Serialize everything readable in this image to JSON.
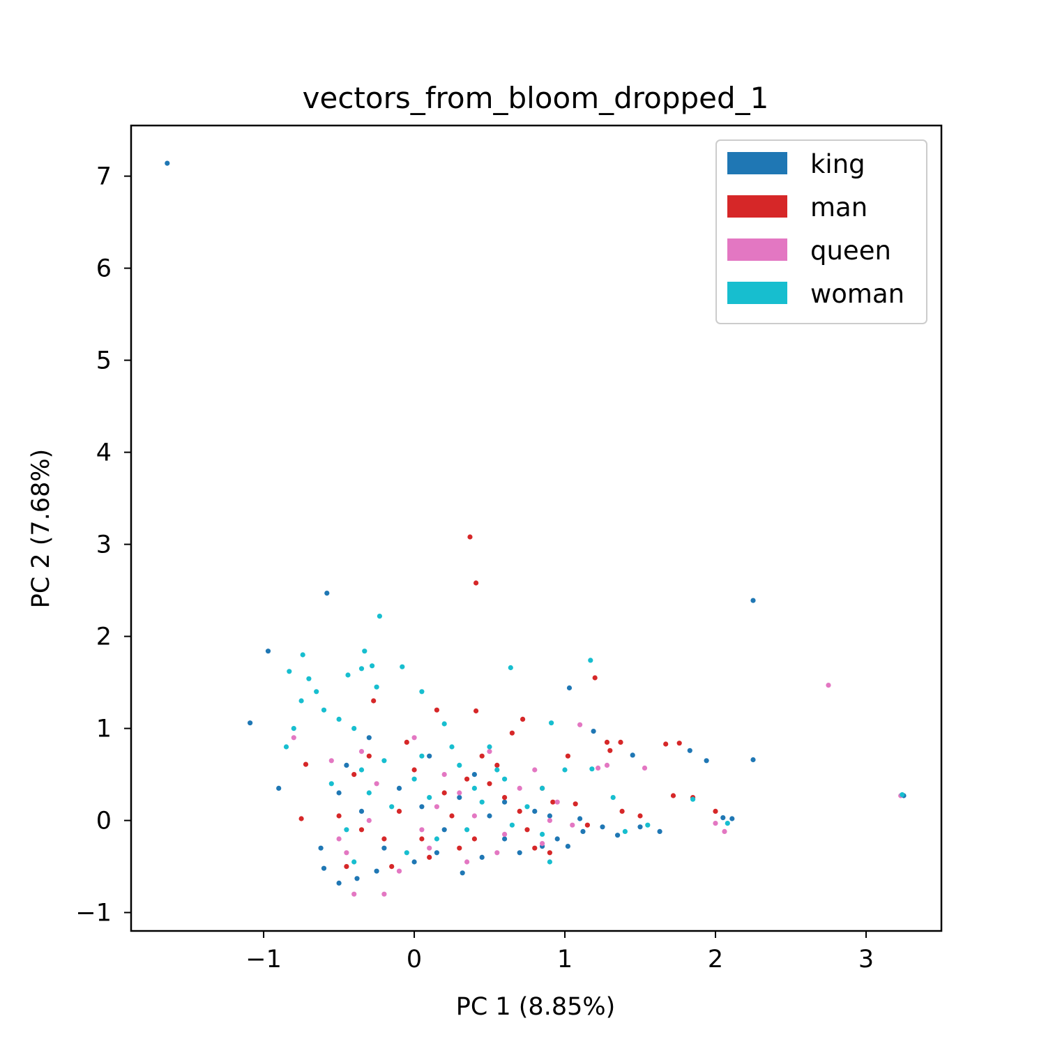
{
  "chart_data": {
    "type": "scatter",
    "title": "vectors_from_bloom_dropped_1",
    "xlabel": "PC 1 (8.85%)",
    "ylabel": "PC 2 (7.68%)",
    "xlim": [
      -1.88,
      3.5
    ],
    "ylim": [
      -1.2,
      7.55
    ],
    "xticks": [
      -1,
      0,
      1,
      2,
      3
    ],
    "xtick_labels": [
      "−1",
      "0",
      "1",
      "2",
      "3"
    ],
    "yticks": [
      -1,
      0,
      1,
      2,
      3,
      4,
      5,
      6,
      7
    ],
    "ytick_labels": [
      "−1",
      "0",
      "1",
      "2",
      "3",
      "4",
      "5",
      "6",
      "7"
    ],
    "grid": false,
    "legend_position": "top-right",
    "series": [
      {
        "name": "king",
        "color": "#1f77b4",
        "points": [
          [
            -1.64,
            7.14
          ],
          [
            -0.58,
            2.47
          ],
          [
            2.25,
            2.39
          ],
          [
            -0.97,
            1.84
          ],
          [
            -1.09,
            1.06
          ],
          [
            -0.9,
            0.35
          ],
          [
            1.03,
            1.44
          ],
          [
            1.19,
            0.97
          ],
          [
            1.45,
            0.71
          ],
          [
            1.83,
            0.76
          ],
          [
            1.94,
            0.65
          ],
          [
            2.25,
            0.66
          ],
          [
            1.5,
            -0.07
          ],
          [
            1.63,
            -0.12
          ],
          [
            2.05,
            0.03
          ],
          [
            2.11,
            0.02
          ],
          [
            3.25,
            0.27
          ],
          [
            -0.62,
            -0.3
          ],
          [
            -0.6,
            -0.52
          ],
          [
            -0.5,
            -0.68
          ],
          [
            -0.38,
            -0.63
          ],
          [
            0.32,
            -0.57
          ],
          [
            0.7,
            -0.35
          ],
          [
            0.85,
            -0.28
          ],
          [
            0.95,
            -0.2
          ],
          [
            1.02,
            -0.28
          ],
          [
            1.12,
            -0.12
          ],
          [
            1.25,
            -0.07
          ],
          [
            1.35,
            -0.16
          ],
          [
            0.6,
            0.2
          ],
          [
            0.4,
            0.5
          ],
          [
            -0.45,
            0.6
          ],
          [
            -0.3,
            0.9
          ],
          [
            0.1,
            0.7
          ],
          [
            0.5,
            0.05
          ],
          [
            -0.2,
            -0.3
          ],
          [
            0.0,
            -0.45
          ],
          [
            0.2,
            -0.1
          ],
          [
            -0.35,
            0.1
          ],
          [
            0.8,
            0.1
          ],
          [
            0.6,
            -0.2
          ],
          [
            -0.5,
            0.3
          ],
          [
            0.3,
            0.25
          ],
          [
            0.15,
            -0.35
          ],
          [
            -0.1,
            0.35
          ],
          [
            0.9,
            0.05
          ],
          [
            1.1,
            0.02
          ],
          [
            0.45,
            -0.4
          ],
          [
            -0.25,
            -0.55
          ],
          [
            0.05,
            0.15
          ]
        ]
      },
      {
        "name": "man",
        "color": "#d62728",
        "points": [
          [
            0.37,
            3.08
          ],
          [
            0.41,
            2.58
          ],
          [
            1.2,
            1.55
          ],
          [
            -0.27,
            1.3
          ],
          [
            0.41,
            1.19
          ],
          [
            -0.75,
            0.02
          ],
          [
            -0.72,
            0.61
          ],
          [
            0.72,
            1.1
          ],
          [
            0.65,
            0.95
          ],
          [
            1.28,
            0.85
          ],
          [
            1.37,
            0.85
          ],
          [
            1.67,
            0.83
          ],
          [
            1.76,
            0.84
          ],
          [
            1.3,
            0.76
          ],
          [
            1.02,
            0.7
          ],
          [
            1.38,
            0.1
          ],
          [
            1.5,
            0.05
          ],
          [
            1.72,
            0.27
          ],
          [
            1.85,
            0.25
          ],
          [
            2.0,
            0.1
          ],
          [
            1.07,
            0.18
          ],
          [
            0.92,
            0.2
          ],
          [
            0.15,
            1.2
          ],
          [
            0.55,
            0.6
          ],
          [
            -0.4,
            0.5
          ],
          [
            0.2,
            0.3
          ],
          [
            0.7,
            0.1
          ],
          [
            -0.2,
            -0.2
          ],
          [
            0.1,
            -0.4
          ],
          [
            0.4,
            -0.2
          ],
          [
            -0.45,
            -0.5
          ],
          [
            0.8,
            -0.3
          ],
          [
            0.9,
            -0.35
          ],
          [
            0.5,
            0.4
          ],
          [
            -0.1,
            0.1
          ],
          [
            0.3,
            -0.3
          ],
          [
            0.6,
            0.25
          ],
          [
            -0.3,
            0.7
          ],
          [
            0.0,
            0.55
          ],
          [
            0.25,
            0.05
          ],
          [
            -0.5,
            0.05
          ],
          [
            0.75,
            -0.1
          ],
          [
            -0.15,
            -0.5
          ],
          [
            0.35,
            0.45
          ],
          [
            1.15,
            -0.05
          ],
          [
            0.05,
            -0.2
          ],
          [
            -0.35,
            -0.1
          ],
          [
            0.45,
            0.7
          ],
          [
            0.85,
            0.35
          ],
          [
            -0.05,
            0.85
          ]
        ]
      },
      {
        "name": "queen",
        "color": "#e377c2",
        "points": [
          [
            2.75,
            1.47
          ],
          [
            1.1,
            1.04
          ],
          [
            1.28,
            0.6
          ],
          [
            1.53,
            0.57
          ],
          [
            1.22,
            0.57
          ],
          [
            -0.8,
            0.9
          ],
          [
            -0.4,
            -0.8
          ],
          [
            -0.2,
            -0.8
          ],
          [
            2.0,
            -0.03
          ],
          [
            2.06,
            -0.12
          ],
          [
            3.23,
            0.27
          ],
          [
            0.8,
            0.55
          ],
          [
            0.95,
            0.2
          ],
          [
            1.05,
            -0.05
          ],
          [
            0.5,
            0.75
          ],
          [
            -0.55,
            0.65
          ],
          [
            0.0,
            0.9
          ],
          [
            0.3,
            0.3
          ],
          [
            -0.3,
            0.0
          ],
          [
            0.1,
            -0.3
          ],
          [
            0.6,
            -0.15
          ],
          [
            -0.45,
            -0.35
          ],
          [
            0.2,
            0.5
          ],
          [
            0.7,
            0.35
          ],
          [
            -0.1,
            -0.55
          ],
          [
            0.4,
            0.05
          ],
          [
            0.85,
            -0.25
          ],
          [
            -0.25,
            0.4
          ],
          [
            0.15,
            0.15
          ],
          [
            0.55,
            -0.35
          ],
          [
            -0.35,
            0.75
          ],
          [
            0.9,
            0.0
          ],
          [
            0.05,
            -0.1
          ],
          [
            0.35,
            -0.45
          ],
          [
            -0.5,
            -0.2
          ]
        ]
      },
      {
        "name": "woman",
        "color": "#17becf",
        "points": [
          [
            -0.23,
            2.22
          ],
          [
            -0.33,
            1.84
          ],
          [
            1.17,
            1.74
          ],
          [
            -0.74,
            1.8
          ],
          [
            -0.83,
            1.62
          ],
          [
            -0.7,
            1.54
          ],
          [
            -0.44,
            1.58
          ],
          [
            -0.35,
            1.65
          ],
          [
            -0.28,
            1.68
          ],
          [
            -0.08,
            1.67
          ],
          [
            0.64,
            1.66
          ],
          [
            -0.25,
            1.45
          ],
          [
            0.05,
            1.4
          ],
          [
            -0.65,
            1.4
          ],
          [
            -0.75,
            1.3
          ],
          [
            -0.8,
            1.0
          ],
          [
            -0.85,
            0.8
          ],
          [
            0.91,
            1.06
          ],
          [
            1.18,
            0.56
          ],
          [
            0.85,
            0.35
          ],
          [
            1.32,
            0.25
          ],
          [
            1.0,
            0.55
          ],
          [
            1.4,
            -0.12
          ],
          [
            1.55,
            -0.05
          ],
          [
            1.85,
            0.23
          ],
          [
            2.08,
            -0.03
          ],
          [
            3.24,
            0.28
          ],
          [
            0.9,
            -0.45
          ],
          [
            -0.6,
            1.2
          ],
          [
            -0.5,
            1.1
          ],
          [
            -0.4,
            1.0
          ],
          [
            0.2,
            1.05
          ],
          [
            0.5,
            0.8
          ],
          [
            -0.3,
            0.3
          ],
          [
            0.0,
            0.45
          ],
          [
            0.3,
            0.6
          ],
          [
            0.6,
            0.45
          ],
          [
            -0.45,
            -0.1
          ],
          [
            0.15,
            -0.2
          ],
          [
            0.45,
            0.2
          ],
          [
            0.75,
            0.15
          ],
          [
            -0.2,
            0.65
          ],
          [
            0.1,
            0.25
          ],
          [
            -0.55,
            0.4
          ],
          [
            0.35,
            -0.1
          ],
          [
            0.65,
            -0.05
          ],
          [
            -0.05,
            -0.35
          ],
          [
            0.25,
            0.8
          ],
          [
            -0.35,
            0.55
          ],
          [
            0.55,
            0.55
          ],
          [
            0.85,
            -0.15
          ],
          [
            -0.15,
            0.15
          ],
          [
            0.05,
            0.7
          ],
          [
            0.4,
            0.35
          ],
          [
            -0.4,
            -0.45
          ]
        ]
      }
    ]
  }
}
